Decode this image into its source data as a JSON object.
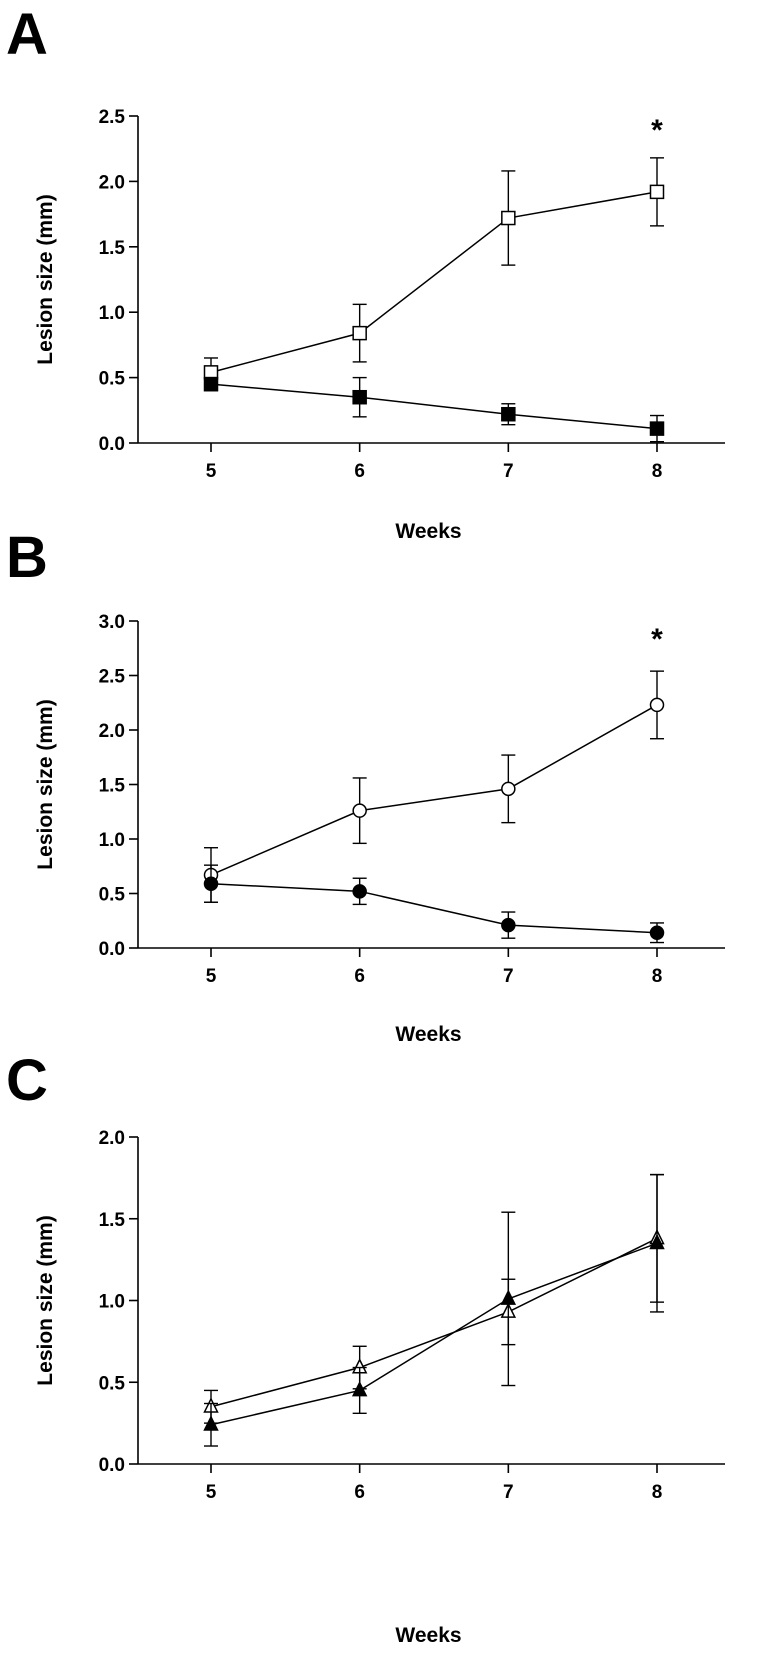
{
  "chart_data": [
    {
      "type": "line",
      "panel_label": "A",
      "xlabel": "Weeks",
      "ylabel": "Lesion size (mm)",
      "x": [
        5,
        6,
        7,
        8
      ],
      "x_ticks": [
        "5",
        "6",
        "7",
        "8"
      ],
      "ylim": [
        0,
        2.5
      ],
      "y_ticks": [
        "0.0",
        "0.5",
        "1.0",
        "1.5",
        "2.0",
        "2.5"
      ],
      "grid": false,
      "annotation": {
        "text": "*",
        "x": 8
      },
      "series": [
        {
          "name": "open square",
          "marker": "square",
          "filled": false,
          "values": [
            0.54,
            0.84,
            1.72,
            1.92
          ],
          "errors": [
            0.11,
            0.22,
            0.36,
            0.26
          ]
        },
        {
          "name": "filled square",
          "marker": "square",
          "filled": true,
          "values": [
            0.45,
            0.35,
            0.22,
            0.11
          ],
          "errors": [
            0.05,
            0.15,
            0.08,
            0.1
          ]
        }
      ]
    },
    {
      "type": "line",
      "panel_label": "B",
      "xlabel": "Weeks",
      "ylabel": "Lesion size (mm)",
      "x": [
        5,
        6,
        7,
        8
      ],
      "x_ticks": [
        "5",
        "6",
        "7",
        "8"
      ],
      "ylim": [
        0,
        3.0
      ],
      "y_ticks": [
        "0.0",
        "0.5",
        "1.0",
        "1.5",
        "2.0",
        "2.5",
        "3.0"
      ],
      "grid": false,
      "annotation": {
        "text": "*",
        "x": 8
      },
      "series": [
        {
          "name": "open circle",
          "marker": "circle",
          "filled": false,
          "values": [
            0.67,
            1.26,
            1.46,
            2.23
          ],
          "errors": [
            0.25,
            0.3,
            0.31,
            0.31
          ]
        },
        {
          "name": "filled circle",
          "marker": "circle",
          "filled": true,
          "values": [
            0.59,
            0.52,
            0.21,
            0.14
          ],
          "errors": [
            0.17,
            0.12,
            0.12,
            0.09
          ]
        }
      ]
    },
    {
      "type": "line",
      "panel_label": "C",
      "xlabel": "Weeks",
      "ylabel": "Lesion size (mm)",
      "x": [
        5,
        6,
        7,
        8
      ],
      "x_ticks": [
        "5",
        "6",
        "7",
        "8"
      ],
      "ylim": [
        0,
        2.0
      ],
      "y_ticks": [
        "0.0",
        "0.5",
        "1.0",
        "1.5",
        "2.0"
      ],
      "grid": false,
      "annotation": null,
      "series": [
        {
          "name": "open triangle",
          "marker": "triangle",
          "filled": false,
          "values": [
            0.35,
            0.59,
            0.93,
            1.38
          ],
          "errors": [
            0.1,
            0.13,
            0.2,
            0.39
          ]
        },
        {
          "name": "filled triangle",
          "marker": "triangle",
          "filled": true,
          "values": [
            0.24,
            0.45,
            1.01,
            1.35
          ],
          "errors": [
            0.13,
            0.14,
            0.53,
            0.42
          ]
        }
      ]
    }
  ]
}
